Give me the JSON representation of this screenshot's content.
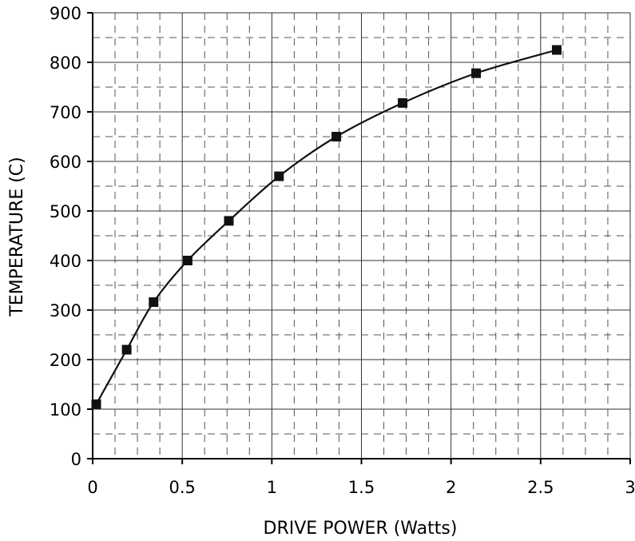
{
  "chart_data": {
    "type": "scatter",
    "title": "",
    "xlabel": "DRIVE POWER (Watts)",
    "ylabel": "TEMPERATURE (C)",
    "xlim": [
      0,
      3
    ],
    "ylim": [
      0,
      900
    ],
    "x_ticks": [
      "0",
      "0.5",
      "1",
      "1.5",
      "2",
      "2.5",
      "3"
    ],
    "y_ticks": [
      "0",
      "100",
      "200",
      "300",
      "400",
      "500",
      "600",
      "700",
      "800",
      "900"
    ],
    "grid": true,
    "grid_minor": "dashed",
    "marker": "square",
    "trendline": true,
    "points": [
      {
        "x": 0.02,
        "y": 110
      },
      {
        "x": 0.19,
        "y": 220
      },
      {
        "x": 0.34,
        "y": 316
      },
      {
        "x": 0.53,
        "y": 400
      },
      {
        "x": 0.76,
        "y": 480
      },
      {
        "x": 1.04,
        "y": 570
      },
      {
        "x": 1.36,
        "y": 650
      },
      {
        "x": 1.73,
        "y": 718
      },
      {
        "x": 2.14,
        "y": 778
      },
      {
        "x": 2.59,
        "y": 825
      }
    ],
    "colors": {
      "marker": "#111111",
      "line": "#111111",
      "grid_major": "#333333",
      "grid_minor": "#555555",
      "axis": "#000000"
    }
  }
}
